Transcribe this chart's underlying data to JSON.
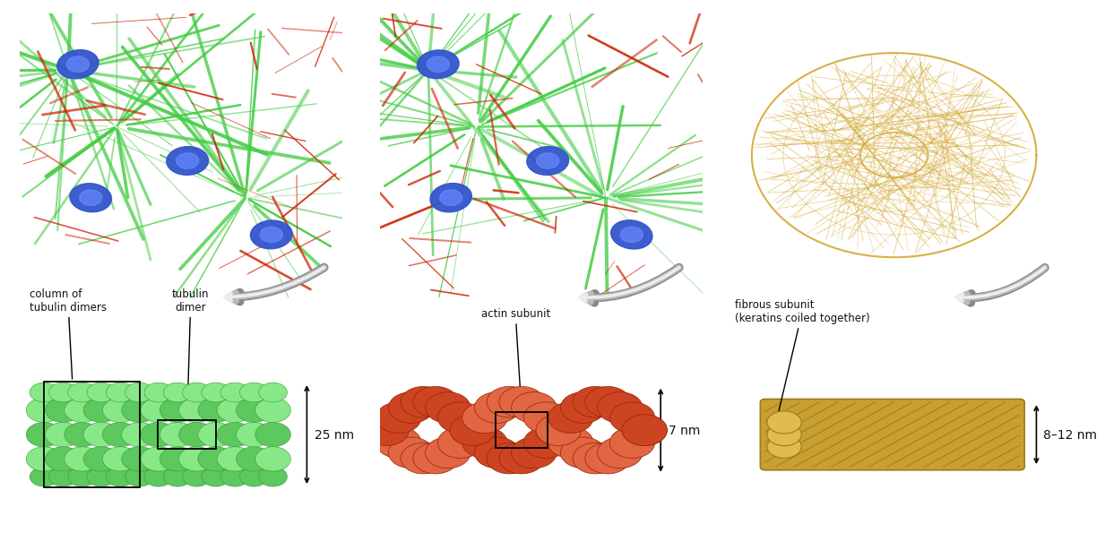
{
  "bg_color": "#ffffff",
  "panel_bg": "#000000",
  "green_fiber": "#44cc44",
  "red_fiber": "#cc3311",
  "blue_nucleus": "#2244cc",
  "microtubule_green1": "#5dc85d",
  "microtubule_green2": "#88e888",
  "actin_color1": "#cc4422",
  "actin_color2": "#e06644",
  "actin_strand_color": "#dd8833",
  "keratin_color1": "#c8a030",
  "keratin_color2": "#e0bb50",
  "keratin_stripe": "#a07820",
  "keratin_web": "#d4a832",
  "text_color": "#111111",
  "panel1_label1": "column of\ntubulin dimers",
  "panel1_label2": "tubulin\ndimer",
  "panel1_dim": "25 nm",
  "panel2_label": "actin subunit",
  "panel2_dim": "7 nm",
  "panel3_label": "fibrous subunit\n(keratins coiled together)",
  "panel3_dim": "8–12 nm"
}
